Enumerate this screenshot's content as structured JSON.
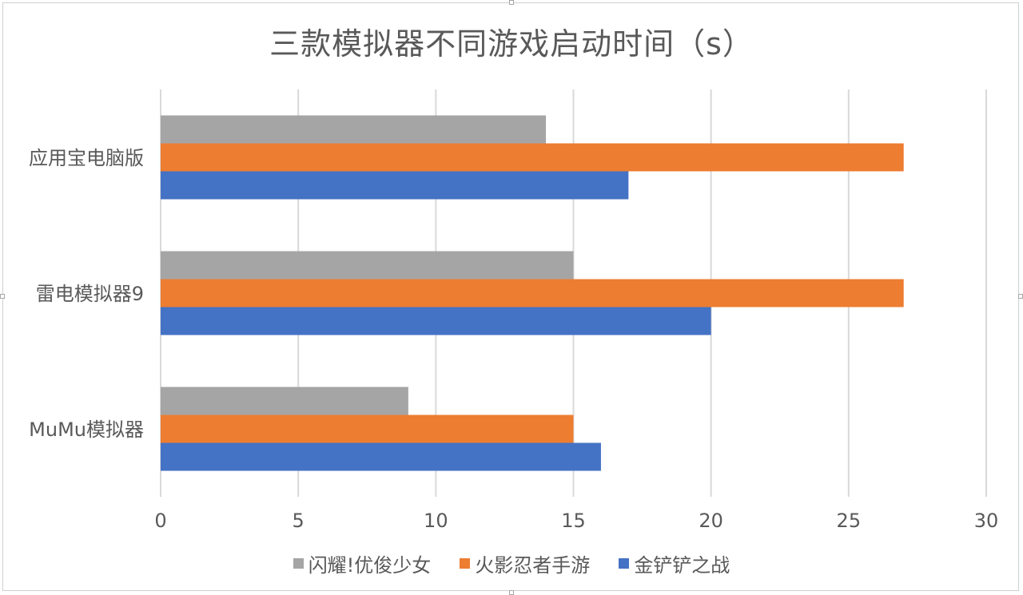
{
  "chart_data": {
    "type": "bar",
    "orientation": "horizontal",
    "title": "三款模拟器不同游戏启动时间（s）",
    "categories": [
      "应用宝电脑版",
      "雷电模拟器9",
      "MuMu模拟器"
    ],
    "series": [
      {
        "name": "闪耀!优俊少女",
        "color": "#a5a5a5",
        "values": [
          14,
          15,
          9
        ]
      },
      {
        "name": "火影忍者手游",
        "color": "#ed7d31",
        "values": [
          27,
          27,
          15
        ]
      },
      {
        "name": "金铲铲之战",
        "color": "#4472c4",
        "values": [
          17,
          20,
          16
        ]
      }
    ],
    "xlim": [
      0,
      30
    ],
    "xticks": [
      "0",
      "5",
      "10",
      "15",
      "20",
      "25",
      "30"
    ],
    "grid": true,
    "legend_position": "bottom"
  }
}
